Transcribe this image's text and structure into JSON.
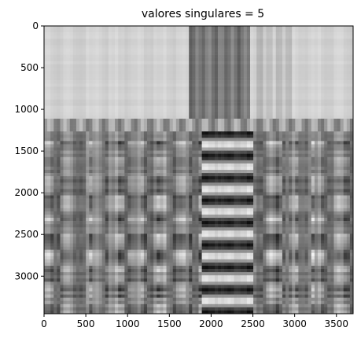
{
  "chart_data": {
    "type": "heatmap",
    "title": "valores singulares = 5",
    "xlabel": "",
    "ylabel": "",
    "colormap": "gray",
    "xlim": [
      0,
      3700
    ],
    "ylim": [
      3450,
      0
    ],
    "x_ticks": [
      0,
      500,
      1000,
      1500,
      2000,
      2500,
      3000,
      3500
    ],
    "y_ticks": [
      0,
      500,
      1000,
      1500,
      2000,
      2500,
      3000
    ],
    "grid": false,
    "legend": "none",
    "description_regions": [
      {
        "y_range": [
          0,
          1100
        ],
        "tone": "light gray with faint vertical streaks; dark band at x 1800-2400"
      },
      {
        "y_range": [
          1100,
          1250
        ],
        "tone": "horizontal transition band"
      },
      {
        "y_range": [
          1250,
          3450
        ],
        "tone": "high-contrast blocky black/white pattern with vertical stripes"
      }
    ]
  }
}
